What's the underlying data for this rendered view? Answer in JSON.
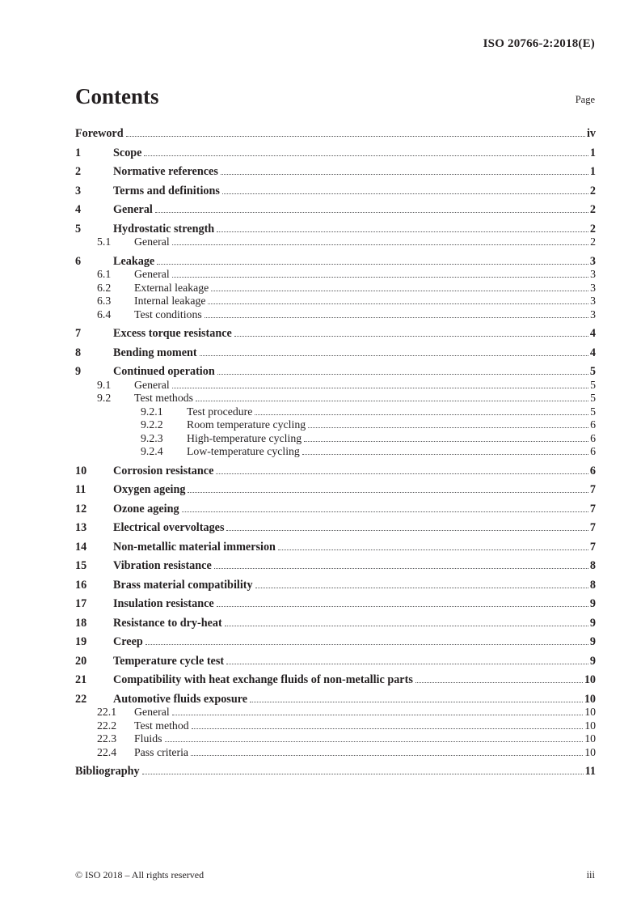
{
  "header": {
    "doc_ref": "ISO 20766-2:2018(E)"
  },
  "contents": {
    "title": "Contents",
    "page_label": "Page",
    "entries": [
      {
        "num": "",
        "label": "Foreword",
        "page": "iv",
        "level": 0
      },
      {
        "num": "1",
        "label": "Scope",
        "page": "1",
        "level": 1
      },
      {
        "num": "2",
        "label": "Normative references",
        "page": "1",
        "level": 1
      },
      {
        "num": "3",
        "label": "Terms and definitions",
        "page": "2",
        "level": 1
      },
      {
        "num": "4",
        "label": "General",
        "page": "2",
        "level": 1
      },
      {
        "num": "5",
        "label": "Hydrostatic strength",
        "page": "2",
        "level": 1
      },
      {
        "num": "5.1",
        "label": "General",
        "page": "2",
        "level": 2
      },
      {
        "num": "6",
        "label": "Leakage",
        "page": "3",
        "level": 1
      },
      {
        "num": "6.1",
        "label": "General",
        "page": "3",
        "level": 2
      },
      {
        "num": "6.2",
        "label": "External leakage",
        "page": "3",
        "level": 2
      },
      {
        "num": "6.3",
        "label": "Internal leakage",
        "page": "3",
        "level": 2
      },
      {
        "num": "6.4",
        "label": "Test conditions",
        "page": "3",
        "level": 2
      },
      {
        "num": "7",
        "label": "Excess torque resistance",
        "page": "4",
        "level": 1
      },
      {
        "num": "8",
        "label": "Bending moment",
        "page": "4",
        "level": 1
      },
      {
        "num": "9",
        "label": "Continued operation",
        "page": "5",
        "level": 1
      },
      {
        "num": "9.1",
        "label": "General",
        "page": "5",
        "level": 2
      },
      {
        "num": "9.2",
        "label": "Test methods",
        "page": "5",
        "level": 2
      },
      {
        "num": "9.2.1",
        "label": "Test procedure",
        "page": "5",
        "level": 3
      },
      {
        "num": "9.2.2",
        "label": "Room temperature cycling",
        "page": "6",
        "level": 3
      },
      {
        "num": "9.2.3",
        "label": "High-temperature cycling",
        "page": "6",
        "level": 3
      },
      {
        "num": "9.2.4",
        "label": "Low-temperature cycling",
        "page": "6",
        "level": 3
      },
      {
        "num": "10",
        "label": "Corrosion resistance",
        "page": "6",
        "level": 1
      },
      {
        "num": "11",
        "label": "Oxygen ageing",
        "page": "7",
        "level": 1
      },
      {
        "num": "12",
        "label": "Ozone ageing",
        "page": "7",
        "level": 1
      },
      {
        "num": "13",
        "label": "Electrical overvoltages",
        "page": "7",
        "level": 1
      },
      {
        "num": "14",
        "label": "Non-metallic material immersion",
        "page": "7",
        "level": 1
      },
      {
        "num": "15",
        "label": "Vibration resistance",
        "page": "8",
        "level": 1
      },
      {
        "num": "16",
        "label": "Brass material compatibility",
        "page": "8",
        "level": 1
      },
      {
        "num": "17",
        "label": "Insulation resistance",
        "page": "9",
        "level": 1
      },
      {
        "num": "18",
        "label": "Resistance to dry-heat",
        "page": "9",
        "level": 1
      },
      {
        "num": "19",
        "label": "Creep",
        "page": "9",
        "level": 1
      },
      {
        "num": "20",
        "label": "Temperature cycle test",
        "page": "9",
        "level": 1
      },
      {
        "num": "21",
        "label": "Compatibility with heat exchange fluids of non-metallic parts",
        "page": "10",
        "level": 1
      },
      {
        "num": "22",
        "label": "Automotive fluids exposure",
        "page": "10",
        "level": 1
      },
      {
        "num": "22.1",
        "label": "General",
        "page": "10",
        "level": 2
      },
      {
        "num": "22.2",
        "label": "Test method",
        "page": "10",
        "level": 2
      },
      {
        "num": "22.3",
        "label": "Fluids",
        "page": "10",
        "level": 2
      },
      {
        "num": "22.4",
        "label": "Pass criteria",
        "page": "10",
        "level": 2
      },
      {
        "num": "",
        "label": "Bibliography",
        "page": "11",
        "level": 0
      }
    ]
  },
  "footer": {
    "copyright": "© ISO 2018 – All rights reserved",
    "page_number": "iii"
  }
}
